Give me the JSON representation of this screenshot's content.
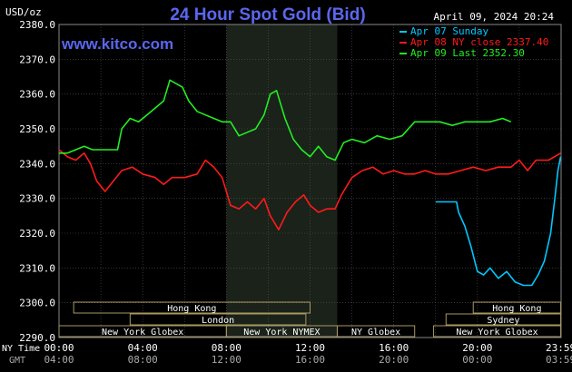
{
  "header": {
    "unit": "USD/oz",
    "title": "24 Hour Spot Gold (Bid)",
    "date": "April 09, 2024 20:24",
    "website": "www.kitco.com"
  },
  "legend": [
    {
      "label": "Apr 07 Sunday",
      "color": "#00c8ff"
    },
    {
      "label": "Apr 08 NY close 2337.40",
      "color": "#ff1a1a"
    },
    {
      "label": "Apr 09 Last 2352.30",
      "color": "#22ee22"
    }
  ],
  "axis": {
    "ny_time_label": "NY Time",
    "gmt_label": "GMT",
    "ny_ticks": [
      "00:00",
      "04:00",
      "08:00",
      "12:00",
      "16:00",
      "20:00",
      "23:59"
    ],
    "gmt_ticks": [
      "04:00",
      "08:00",
      "12:00",
      "16:00",
      "20:00",
      "00:00",
      "03:59"
    ]
  },
  "sessions": [
    {
      "label": "Hong Kong",
      "start": 0.7,
      "end": 12
    },
    {
      "label": "London",
      "start": 3.4,
      "end": 11.8
    },
    {
      "label": "New York Globex",
      "start": 0.0,
      "end": 8.0
    },
    {
      "label": "New York NYMEX",
      "start": 8.0,
      "end": 13.3
    },
    {
      "label": "NY Globex",
      "start": 13.3,
      "end": 17.0
    },
    {
      "label": "Hong Kong",
      "start": 19.8,
      "end": 23.98
    },
    {
      "label": "Sydney",
      "start": 18.5,
      "end": 23.98
    },
    {
      "label": "New York Globex",
      "start": 17.9,
      "end": 23.98
    }
  ],
  "chart_data": {
    "type": "line",
    "xlabel": "NY Time",
    "ylabel": "USD/oz",
    "xlim": [
      0,
      24
    ],
    "ylim": [
      2290,
      2380
    ],
    "yticks": [
      "2290.0",
      "2300.0",
      "2310.0",
      "2320.0",
      "2330.0",
      "2340.0",
      "2350.0",
      "2360.0",
      "2370.0",
      "2380.0"
    ],
    "grid": true,
    "shaded_region": [
      8.0,
      13.3
    ],
    "series": [
      {
        "name": "Apr 08 NY close 2337.40",
        "color": "#ff1a1a",
        "points": [
          [
            0,
            2344
          ],
          [
            0.4,
            2342
          ],
          [
            0.8,
            2341
          ],
          [
            1.2,
            2343
          ],
          [
            1.5,
            2340
          ],
          [
            1.8,
            2335
          ],
          [
            2.2,
            2332
          ],
          [
            2.6,
            2335
          ],
          [
            3.0,
            2338
          ],
          [
            3.5,
            2339
          ],
          [
            4.0,
            2337
          ],
          [
            4.6,
            2336
          ],
          [
            5.0,
            2334
          ],
          [
            5.4,
            2336
          ],
          [
            6.0,
            2336
          ],
          [
            6.6,
            2337
          ],
          [
            7.0,
            2341
          ],
          [
            7.4,
            2339
          ],
          [
            7.8,
            2336
          ],
          [
            8.2,
            2328
          ],
          [
            8.6,
            2327
          ],
          [
            9.0,
            2329
          ],
          [
            9.4,
            2327
          ],
          [
            9.8,
            2330
          ],
          [
            10.1,
            2325
          ],
          [
            10.5,
            2321
          ],
          [
            10.9,
            2326
          ],
          [
            11.3,
            2329
          ],
          [
            11.7,
            2331
          ],
          [
            12.0,
            2328
          ],
          [
            12.4,
            2326
          ],
          [
            12.8,
            2327
          ],
          [
            13.2,
            2327
          ],
          [
            13.5,
            2331
          ],
          [
            14.0,
            2336
          ],
          [
            14.5,
            2338
          ],
          [
            15.0,
            2339
          ],
          [
            15.5,
            2337
          ],
          [
            16.0,
            2338
          ],
          [
            16.5,
            2337
          ],
          [
            17.0,
            2337
          ],
          [
            17.5,
            2338
          ],
          [
            18.0,
            2337
          ],
          [
            18.6,
            2337
          ],
          [
            19.2,
            2338
          ],
          [
            19.8,
            2339
          ],
          [
            20.4,
            2338
          ],
          [
            21.0,
            2339
          ],
          [
            21.6,
            2339
          ],
          [
            22.0,
            2341
          ],
          [
            22.4,
            2338
          ],
          [
            22.8,
            2341
          ],
          [
            23.4,
            2341
          ],
          [
            23.98,
            2343
          ]
        ]
      },
      {
        "name": "Apr 09 Last 2352.30",
        "color": "#22ee22",
        "points": [
          [
            0,
            2343
          ],
          [
            0.4,
            2343
          ],
          [
            0.8,
            2344
          ],
          [
            1.2,
            2345
          ],
          [
            1.6,
            2344
          ],
          [
            2.0,
            2344
          ],
          [
            2.4,
            2344
          ],
          [
            2.8,
            2344
          ],
          [
            3.0,
            2350
          ],
          [
            3.4,
            2353
          ],
          [
            3.8,
            2352
          ],
          [
            4.2,
            2354
          ],
          [
            4.6,
            2356
          ],
          [
            5.0,
            2358
          ],
          [
            5.3,
            2364
          ],
          [
            5.6,
            2363
          ],
          [
            5.9,
            2362
          ],
          [
            6.2,
            2358
          ],
          [
            6.6,
            2355
          ],
          [
            7.0,
            2354
          ],
          [
            7.4,
            2353
          ],
          [
            7.8,
            2352
          ],
          [
            8.2,
            2352
          ],
          [
            8.6,
            2348
          ],
          [
            9.0,
            2349
          ],
          [
            9.4,
            2350
          ],
          [
            9.8,
            2354
          ],
          [
            10.1,
            2360
          ],
          [
            10.4,
            2361
          ],
          [
            10.8,
            2353
          ],
          [
            11.2,
            2347
          ],
          [
            11.6,
            2344
          ],
          [
            12.0,
            2342
          ],
          [
            12.4,
            2345
          ],
          [
            12.8,
            2342
          ],
          [
            13.2,
            2341
          ],
          [
            13.6,
            2346
          ],
          [
            14.0,
            2347
          ],
          [
            14.6,
            2346
          ],
          [
            15.2,
            2348
          ],
          [
            15.8,
            2347
          ],
          [
            16.4,
            2348
          ],
          [
            17.0,
            2352
          ],
          [
            17.6,
            2352
          ],
          [
            18.2,
            2352
          ],
          [
            18.8,
            2351
          ],
          [
            19.4,
            2352
          ],
          [
            20.0,
            2352
          ],
          [
            20.6,
            2352
          ],
          [
            21.2,
            2353
          ],
          [
            21.6,
            2352
          ]
        ]
      },
      {
        "name": "Apr 07 Sunday",
        "color": "#00c8ff",
        "points": [
          [
            18.0,
            2329
          ],
          [
            19.0,
            2329
          ],
          [
            19.1,
            2326
          ],
          [
            19.4,
            2322
          ],
          [
            19.7,
            2316
          ],
          [
            20.0,
            2309
          ],
          [
            20.3,
            2308
          ],
          [
            20.6,
            2310
          ],
          [
            21.0,
            2307
          ],
          [
            21.4,
            2309
          ],
          [
            21.8,
            2306
          ],
          [
            22.2,
            2305
          ],
          [
            22.6,
            2305
          ],
          [
            22.9,
            2308
          ],
          [
            23.2,
            2312
          ],
          [
            23.5,
            2320
          ],
          [
            23.7,
            2330
          ],
          [
            23.85,
            2338
          ],
          [
            23.98,
            2342
          ]
        ]
      }
    ]
  }
}
